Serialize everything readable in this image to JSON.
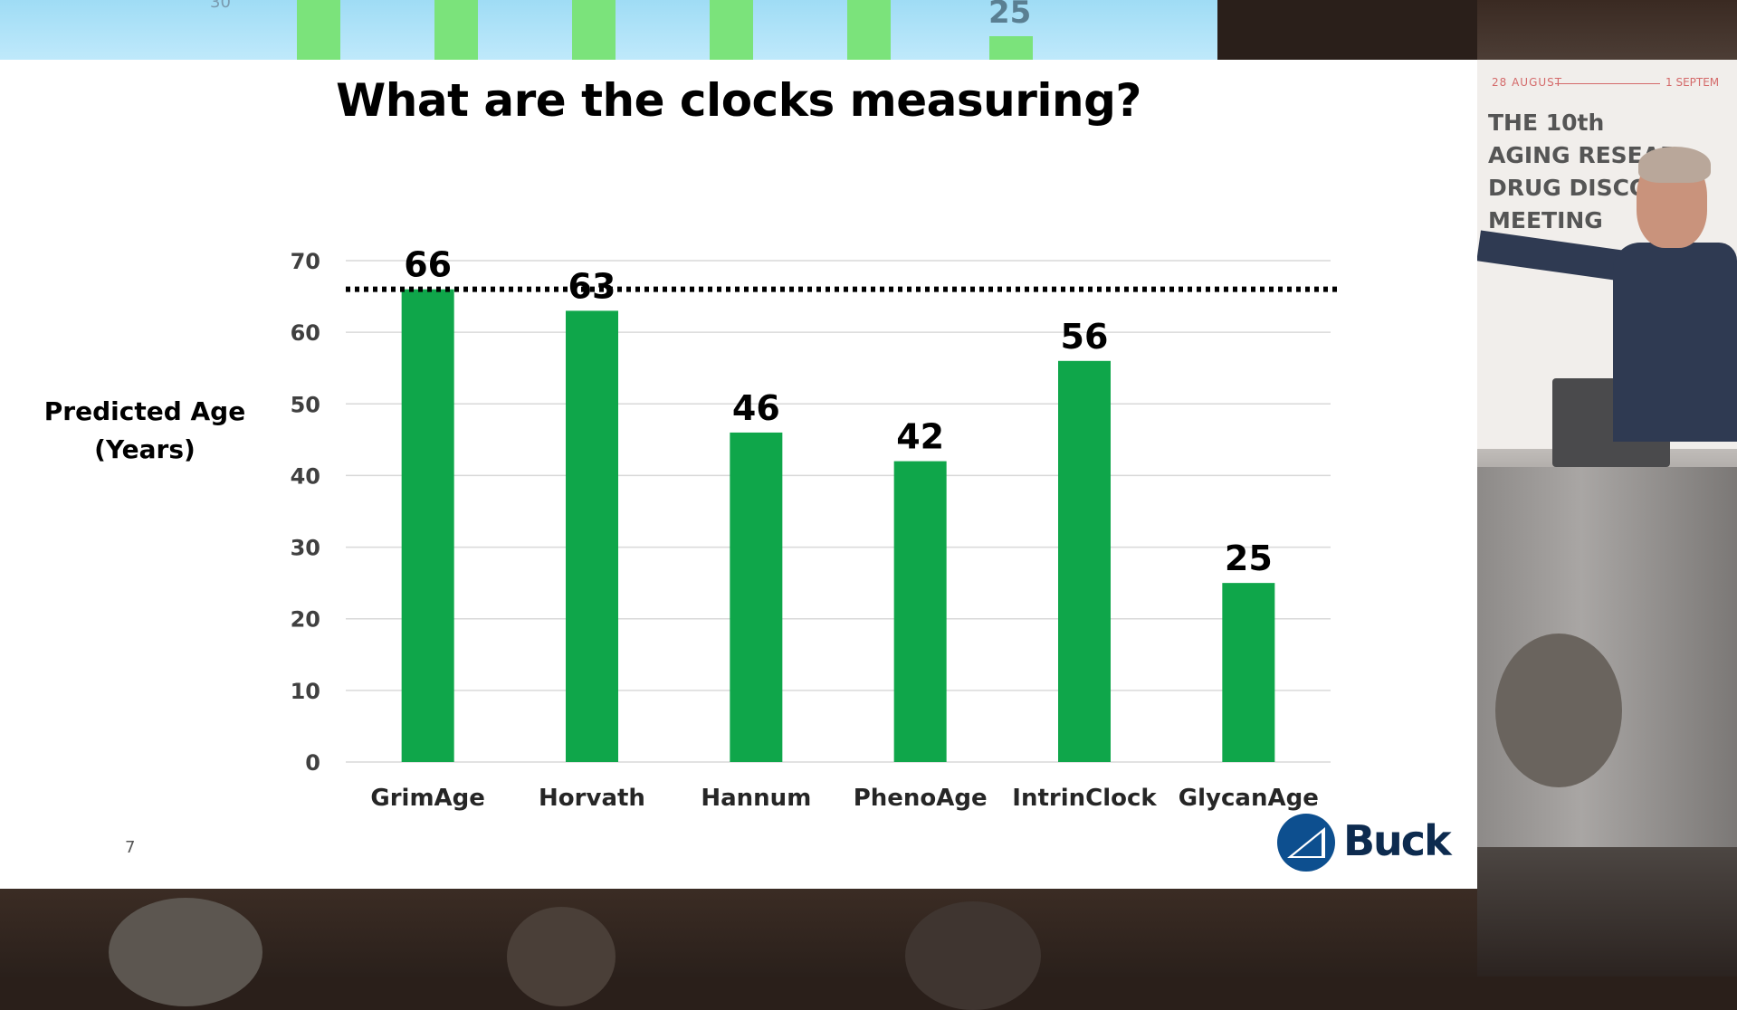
{
  "background": {
    "top_screen_label": "25",
    "top_screen_tick": "30",
    "banner_date_start": "28 AUGUST",
    "banner_date_end": "1 SEPTEM",
    "banner_lines": [
      "THE 10th",
      "AGING RESEAR",
      "DRUG DISCO",
      "MEETING"
    ]
  },
  "slide": {
    "title": "What are the clocks measuring?",
    "ylabel_line1": "Predicted Age",
    "ylabel_line2": "(Years)",
    "page_number": "7",
    "logo_text": "Buck"
  },
  "colors": {
    "bar": "#0fa64a",
    "grid": "#d9d9d9",
    "reference_line": "#000000"
  },
  "chart_data": {
    "type": "bar",
    "title": "What are the clocks measuring?",
    "ylabel": "Predicted Age (Years)",
    "xlabel": "",
    "categories": [
      "GrimAge",
      "Horvath",
      "Hannum",
      "PhenoAge",
      "IntrinClock",
      "GlycanAge"
    ],
    "values": [
      66,
      63,
      46,
      42,
      56,
      25
    ],
    "ylim": [
      0,
      70
    ],
    "yticks": [
      0,
      10,
      20,
      30,
      40,
      50,
      60,
      70
    ],
    "reference_line": {
      "style": "dotted",
      "value": 66
    },
    "grid": true,
    "data_labels": true
  }
}
